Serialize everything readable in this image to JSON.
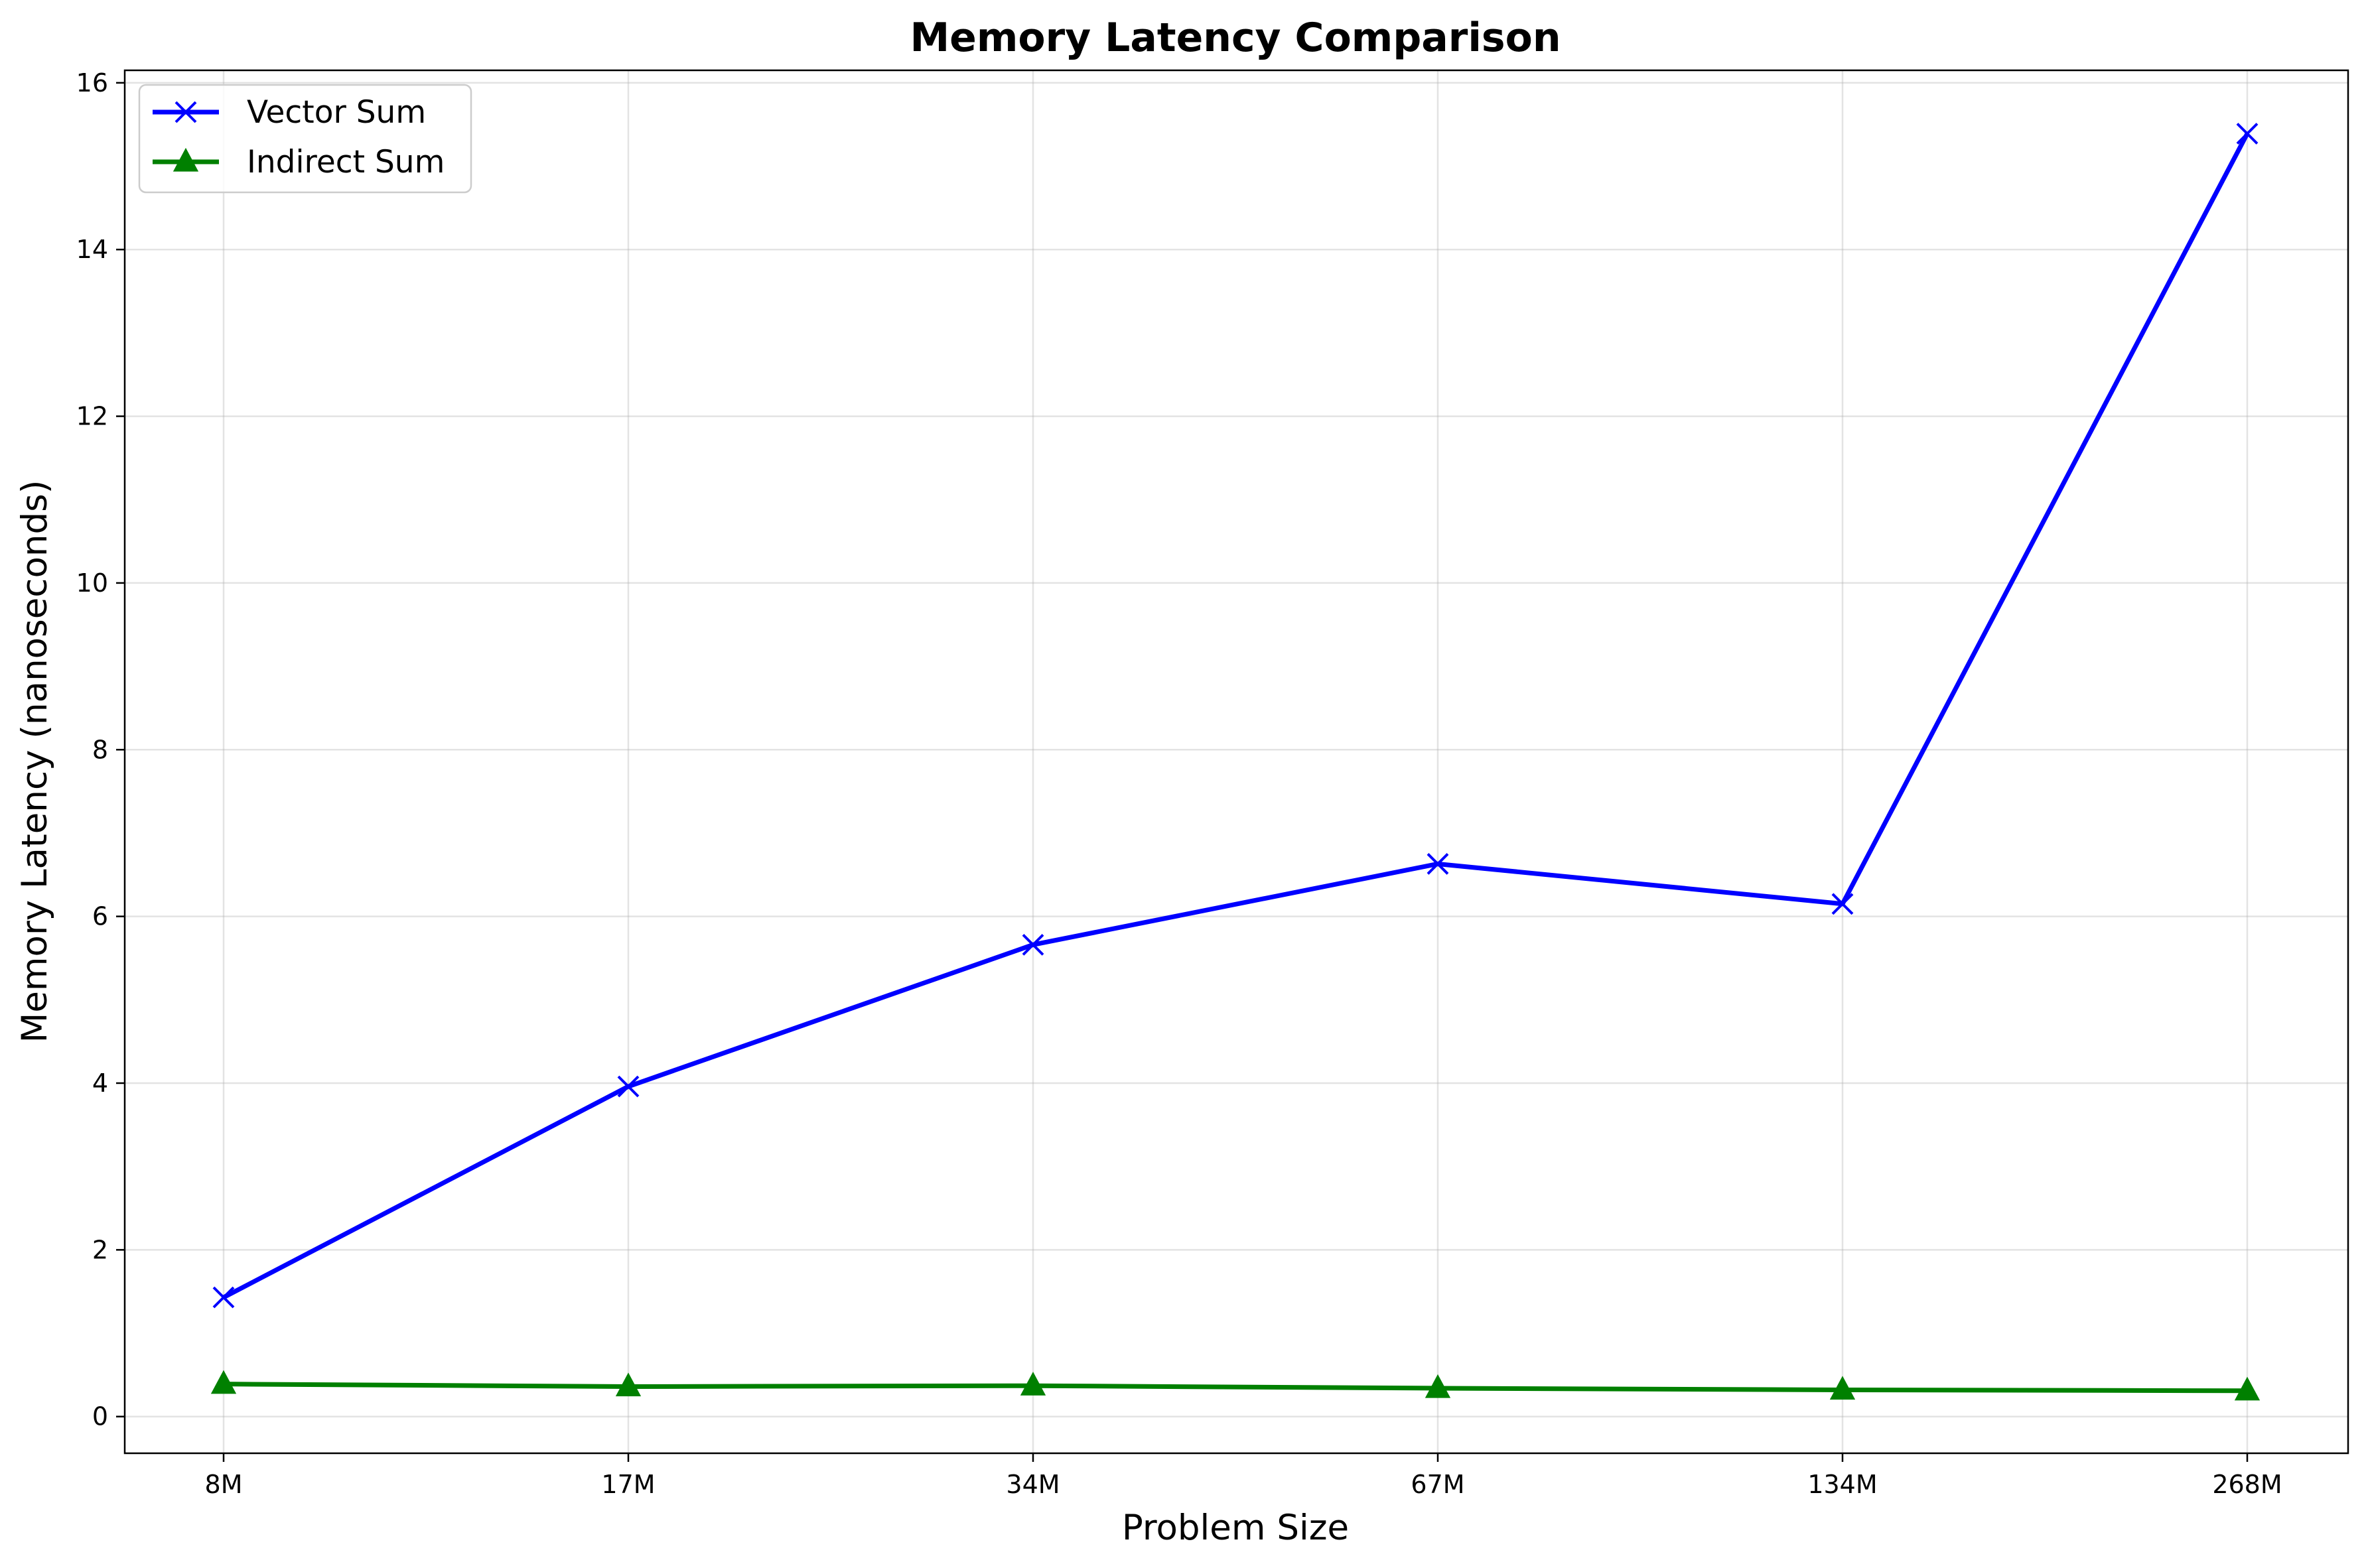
{
  "chart_data": {
    "type": "line",
    "title": "Memory Latency Comparison",
    "xlabel": "Problem Size",
    "ylabel": "Memory Latency (nanoseconds)",
    "categories": [
      "8M",
      "17M",
      "34M",
      "67M",
      "134M",
      "268M"
    ],
    "ylim": [
      -0.44,
      16.15
    ],
    "yticks": [
      0,
      2,
      4,
      6,
      8,
      10,
      12,
      14,
      16
    ],
    "grid": true,
    "legend_position": "top-left",
    "series": [
      {
        "name": "Vector Sum",
        "color": "#0000ff",
        "marker": "x",
        "values": [
          1.43,
          3.96,
          5.66,
          6.63,
          6.15,
          15.39
        ]
      },
      {
        "name": "Indirect Sum",
        "color": "#008000",
        "marker": "triangle",
        "values": [
          0.39,
          0.36,
          0.37,
          0.34,
          0.32,
          0.31
        ]
      }
    ]
  }
}
